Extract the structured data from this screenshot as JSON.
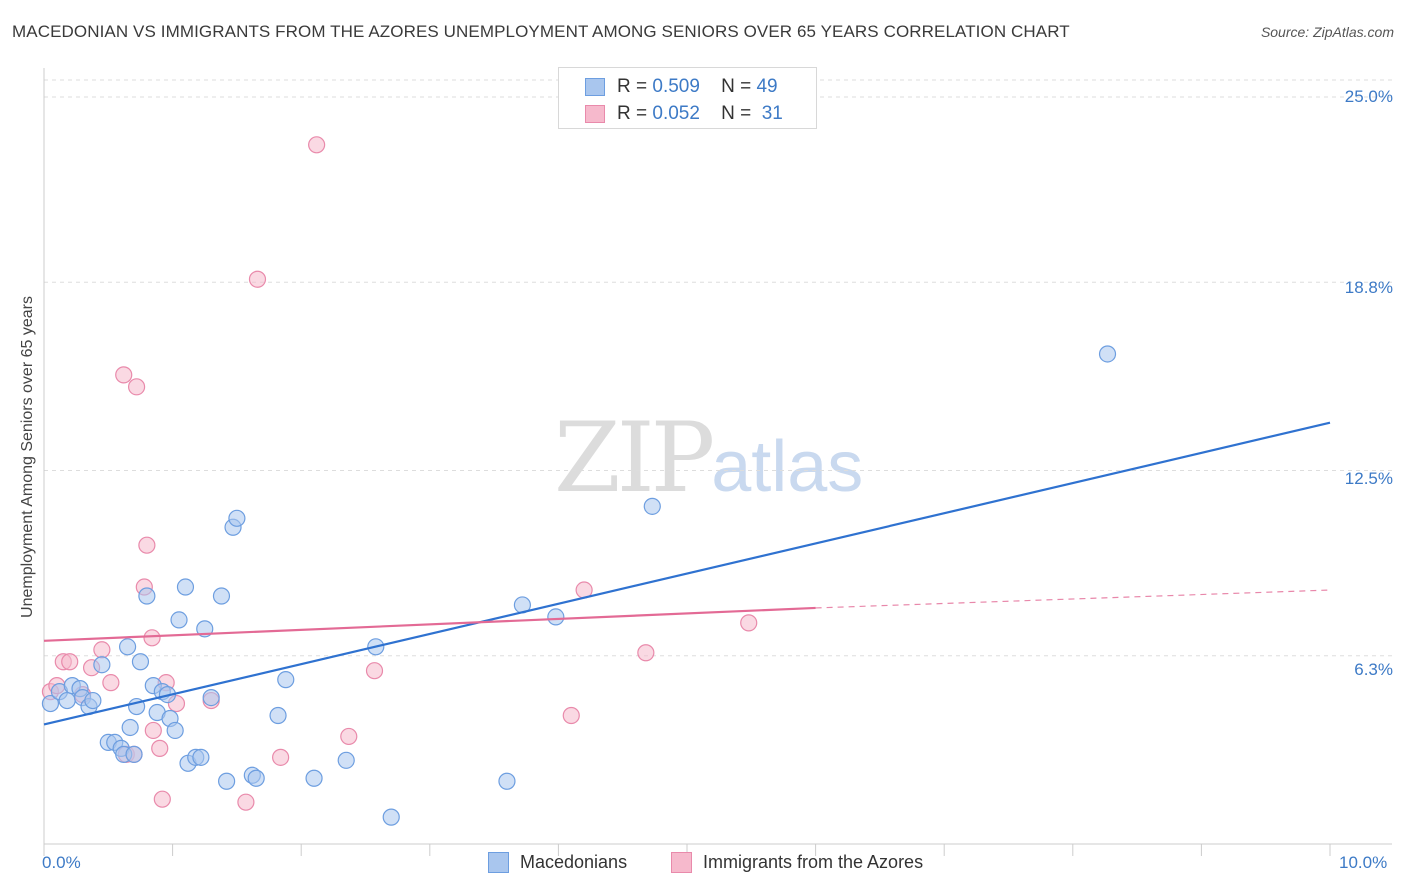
{
  "title": "MACEDONIAN VS IMMIGRANTS FROM THE AZORES UNEMPLOYMENT AMONG SENIORS OVER 65 YEARS CORRELATION CHART",
  "source": "Source: ZipAtlas.com",
  "watermark": {
    "zip": "ZIP",
    "atlas": "atlas"
  },
  "legend_top": [
    {
      "r_label": "R =",
      "r_value": "0.509",
      "n_label": "N =",
      "n_value": "49"
    },
    {
      "r_label": "R =",
      "r_value": "0.052",
      "n_label": "N =",
      "n_value": "31"
    }
  ],
  "legend_bottom": [
    "Macedonians",
    "Immigrants from the Azores"
  ],
  "colors": {
    "blue_fill": "#a9c6ee",
    "blue_stroke": "#6d9ee0",
    "blue_line": "#2f72d0",
    "pink_fill": "#f6b9cc",
    "pink_stroke": "#e98aab",
    "pink_line": "#e36a95",
    "tick_text": "#3d7ac6",
    "grid": "#dddddd"
  },
  "chart_data": {
    "type": "scatter",
    "title": "MACEDONIAN VS IMMIGRANTS FROM THE AZORES UNEMPLOYMENT AMONG SENIORS OVER 65 YEARS CORRELATION CHART",
    "xlabel": "",
    "ylabel": "Unemployment Among Seniors over 65 years",
    "xlim": [
      0,
      10
    ],
    "ylim": [
      0,
      25
    ],
    "x_tick_labels": [
      "0.0%",
      "10.0%"
    ],
    "y_ticks": [
      6.3,
      12.5,
      18.8,
      25.0
    ],
    "y_tick_labels": [
      "6.3%",
      "12.5%",
      "18.8%",
      "25.0%"
    ],
    "grid": true,
    "series": [
      {
        "name": "Macedonians",
        "points": [
          [
            0.05,
            4.7
          ],
          [
            0.12,
            5.1
          ],
          [
            0.18,
            4.8
          ],
          [
            0.22,
            5.3
          ],
          [
            0.28,
            5.2
          ],
          [
            0.3,
            4.9
          ],
          [
            0.35,
            4.6
          ],
          [
            0.38,
            4.8
          ],
          [
            0.45,
            6.0
          ],
          [
            0.5,
            3.4
          ],
          [
            0.55,
            3.4
          ],
          [
            0.6,
            3.2
          ],
          [
            0.62,
            3.0
          ],
          [
            0.65,
            6.6
          ],
          [
            0.67,
            3.9
          ],
          [
            0.72,
            4.6
          ],
          [
            0.75,
            6.1
          ],
          [
            0.8,
            8.3
          ],
          [
            0.85,
            5.3
          ],
          [
            0.88,
            4.4
          ],
          [
            0.92,
            5.1
          ],
          [
            0.98,
            4.2
          ],
          [
            1.02,
            3.8
          ],
          [
            1.05,
            7.5
          ],
          [
            1.12,
            2.7
          ],
          [
            1.18,
            2.9
          ],
          [
            1.22,
            2.9
          ],
          [
            1.25,
            7.2
          ],
          [
            1.3,
            4.9
          ],
          [
            1.38,
            8.3
          ],
          [
            1.42,
            2.1
          ],
          [
            1.47,
            10.6
          ],
          [
            1.5,
            10.9
          ],
          [
            1.62,
            2.3
          ],
          [
            1.65,
            2.2
          ],
          [
            1.82,
            4.3
          ],
          [
            1.88,
            5.5
          ],
          [
            2.1,
            2.2
          ],
          [
            2.35,
            2.8
          ],
          [
            2.58,
            6.6
          ],
          [
            2.7,
            0.9
          ],
          [
            3.6,
            2.1
          ],
          [
            3.72,
            8.0
          ],
          [
            3.98,
            7.6
          ],
          [
            4.73,
            11.3
          ],
          [
            8.27,
            16.4
          ],
          [
            1.1,
            8.6
          ],
          [
            0.7,
            3.0
          ],
          [
            0.96,
            5.0
          ]
        ]
      },
      {
        "name": "Immigrants from the Azores",
        "points": [
          [
            0.05,
            5.1
          ],
          [
            0.1,
            5.3
          ],
          [
            0.15,
            6.1
          ],
          [
            0.2,
            6.1
          ],
          [
            0.3,
            5.0
          ],
          [
            0.37,
            5.9
          ],
          [
            0.45,
            6.5
          ],
          [
            0.52,
            5.4
          ],
          [
            0.62,
            15.7
          ],
          [
            0.64,
            3.0
          ],
          [
            0.7,
            3.0
          ],
          [
            0.72,
            15.3
          ],
          [
            0.78,
            8.6
          ],
          [
            0.8,
            10.0
          ],
          [
            0.84,
            6.9
          ],
          [
            0.85,
            3.8
          ],
          [
            0.9,
            3.2
          ],
          [
            0.92,
            1.5
          ],
          [
            0.95,
            5.4
          ],
          [
            1.03,
            4.7
          ],
          [
            1.3,
            4.8
          ],
          [
            1.57,
            1.4
          ],
          [
            1.66,
            18.9
          ],
          [
            1.84,
            2.9
          ],
          [
            2.12,
            23.4
          ],
          [
            2.37,
            3.6
          ],
          [
            2.57,
            5.8
          ],
          [
            4.1,
            4.3
          ],
          [
            4.2,
            8.5
          ],
          [
            4.68,
            6.4
          ],
          [
            5.48,
            7.4
          ]
        ]
      }
    ],
    "trend_lines": [
      {
        "series": "Macedonians",
        "x": [
          0,
          10
        ],
        "y": [
          4.0,
          14.1
        ]
      },
      {
        "series": "Immigrants from the Azores",
        "x": [
          0,
          6.0
        ],
        "y": [
          6.8,
          7.9
        ],
        "dashed_to": [
          10,
          8.5
        ]
      }
    ]
  }
}
